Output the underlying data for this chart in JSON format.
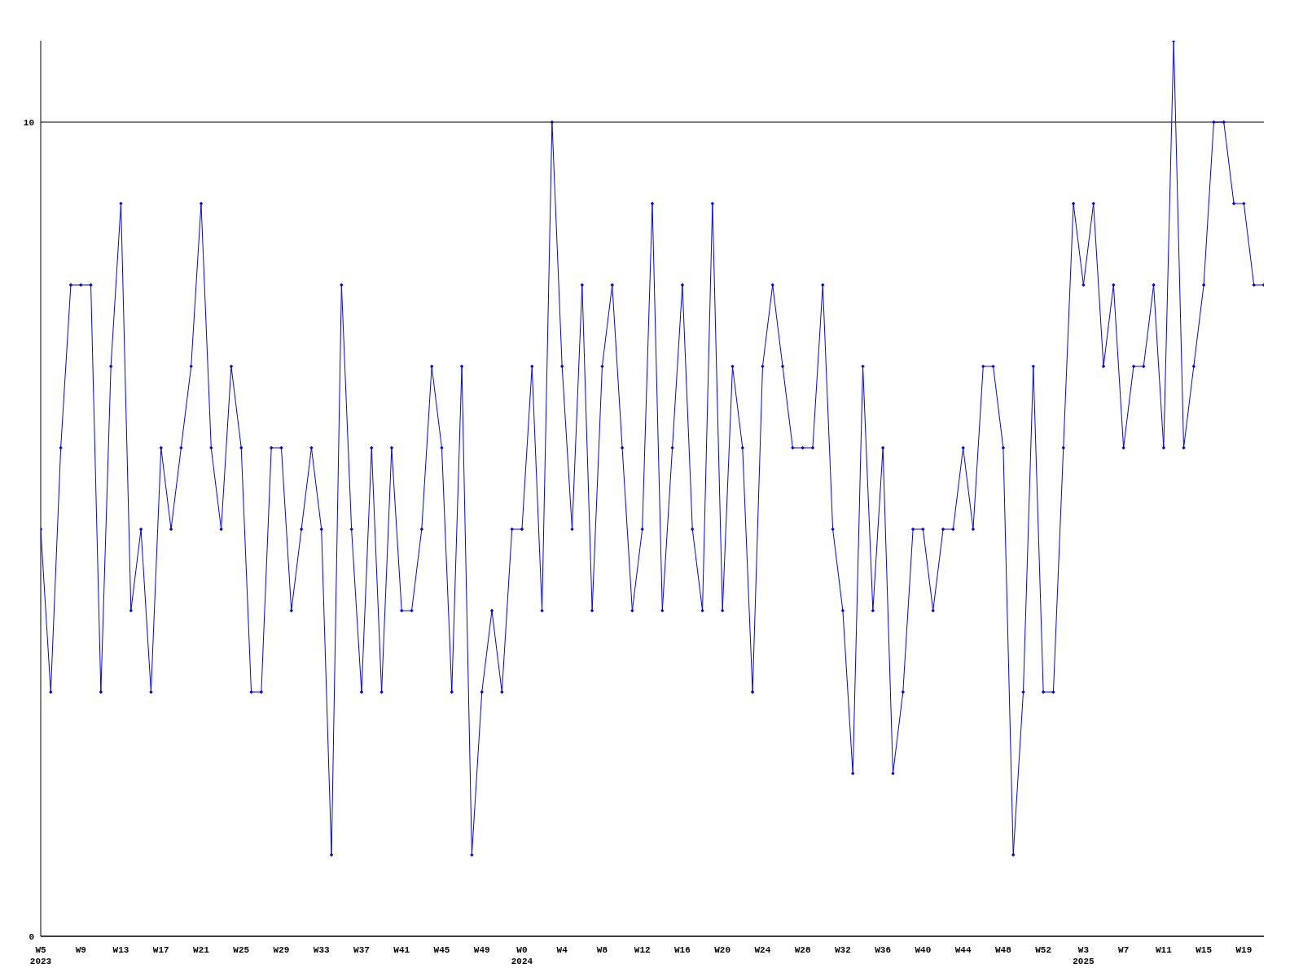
{
  "chart_data": {
    "type": "line",
    "categories": [
      "W5\n2023",
      null,
      null,
      null,
      "W9",
      null,
      null,
      null,
      "W13",
      null,
      null,
      null,
      "W17",
      null,
      null,
      null,
      "W21",
      null,
      null,
      null,
      "W25",
      null,
      null,
      null,
      "W29",
      null,
      null,
      null,
      "W33",
      null,
      null,
      null,
      "W37",
      null,
      null,
      null,
      "W41",
      null,
      null,
      null,
      "W45",
      null,
      null,
      null,
      "W49",
      null,
      null,
      null,
      "W0\n2024",
      null,
      null,
      null,
      "W4",
      null,
      null,
      null,
      "W8",
      null,
      null,
      null,
      "W12",
      null,
      null,
      null,
      "W16",
      null,
      null,
      null,
      "W20",
      null,
      null,
      null,
      "W24",
      null,
      null,
      null,
      "W28",
      null,
      null,
      null,
      "W32",
      null,
      null,
      null,
      "W36",
      null,
      null,
      null,
      "W40",
      null,
      null,
      null,
      "W44",
      null,
      null,
      null,
      "W48",
      null,
      null,
      null,
      "W52",
      null,
      null,
      null,
      "W3\n2025",
      null,
      null,
      null,
      "W7",
      null,
      null,
      null,
      "W11",
      null,
      null,
      null,
      "W15",
      null,
      null,
      null,
      "W19",
      null,
      null
    ],
    "series": [
      {
        "color": "#0000ff",
        "values": [
          5,
          3,
          6,
          8,
          8,
          8,
          3,
          7,
          9,
          4,
          5,
          3,
          6,
          5,
          6,
          7,
          9,
          6,
          5,
          7,
          6,
          3,
          3,
          6,
          6,
          4,
          5,
          6,
          5,
          1,
          8,
          5,
          3,
          6,
          3,
          6,
          4,
          4,
          5,
          7,
          6,
          3,
          7,
          1,
          3,
          4,
          3,
          5,
          5,
          7,
          4,
          10,
          7,
          5,
          8,
          4,
          7,
          8,
          6,
          4,
          5,
          9,
          4,
          6,
          8,
          5,
          4,
          9,
          4,
          7,
          6,
          3,
          7,
          8,
          7,
          6,
          6,
          6,
          8,
          5,
          4,
          2,
          7,
          4,
          6,
          2,
          3,
          5,
          5,
          4,
          5,
          5,
          6,
          5,
          7,
          7,
          6,
          1,
          3,
          7,
          3,
          3,
          6,
          9,
          8,
          9,
          7,
          8,
          6,
          7,
          7,
          8,
          6,
          11,
          6,
          7,
          8,
          10,
          10,
          9,
          9,
          8,
          8
        ]
      }
    ],
    "ylim": [
      0,
      11
    ],
    "yticks": [
      0,
      10
    ],
    "grid": "y",
    "marker": "diamond"
  }
}
